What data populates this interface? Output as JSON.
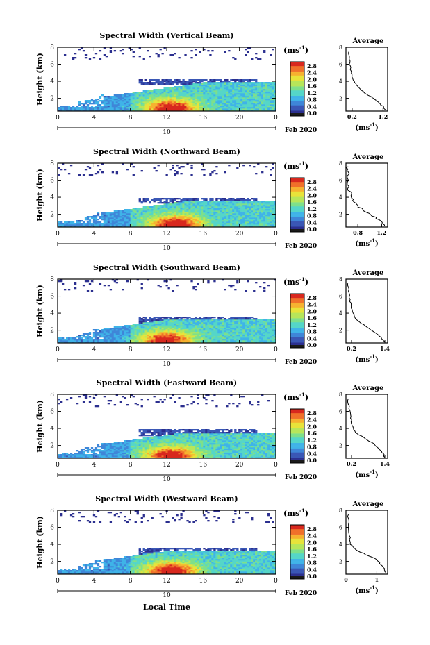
{
  "figure": {
    "xlabel": "Local Time",
    "date_label": "Feb 2020",
    "day_label": "10",
    "colorbar_unit": "(ms",
    "colorbar_unit_exp": "-1",
    "colorbar_unit_close": ")",
    "avg_title": "Average",
    "avg_xlabel": "(ms",
    "avg_xlabel_exp": "-1",
    "avg_xlabel_close": ")",
    "ylabel": "Height (km)",
    "colormap": [
      "#2b2f8f",
      "#3a57b5",
      "#3f86d8",
      "#3fb3e8",
      "#55d6c8",
      "#7ee08a",
      "#b7e65a",
      "#e8e33a",
      "#f6b12f",
      "#f0702a",
      "#d8281e"
    ]
  },
  "chart_data": [
    {
      "type": "heatmap",
      "title": "Spectral Width (Vertical Beam)",
      "x_ticks": [
        "0",
        "4",
        "8",
        "12",
        "16",
        "20",
        "0"
      ],
      "xlim": [
        0,
        24
      ],
      "y_ticks": [
        "2",
        "4",
        "6",
        "8"
      ],
      "ylim": [
        0.5,
        8
      ],
      "colorbar": {
        "ticks": [
          "0.0",
          "0.4",
          "0.8",
          "1.2",
          "1.6",
          "2.0",
          "2.4",
          "2.8"
        ],
        "range": [
          0,
          2.8
        ]
      },
      "average": {
        "title": "Average",
        "x_ticks": [
          "0.2",
          "1.2"
        ],
        "xlim": [
          0,
          1.35
        ],
        "y_ticks": [
          "2",
          "4",
          "6",
          "8"
        ],
        "ylim": [
          0.5,
          8
        ],
        "profile": [
          [
            1.3,
            0.6
          ],
          [
            1.2,
            1.0
          ],
          [
            1.1,
            1.4
          ],
          [
            0.95,
            1.8
          ],
          [
            0.8,
            2.2
          ],
          [
            0.55,
            2.8
          ],
          [
            0.4,
            3.4
          ],
          [
            0.25,
            4.0
          ],
          [
            0.2,
            4.6
          ],
          [
            0.15,
            5.2
          ],
          [
            0.12,
            6.0
          ],
          [
            0.1,
            6.8
          ],
          [
            0.08,
            7.5
          ]
        ]
      },
      "cloud_top": 3.9,
      "convective_peak": 12.5,
      "peak_value": 2.6
    },
    {
      "type": "heatmap",
      "title": "Spectral Width (Northward Beam)",
      "x_ticks": [
        "0",
        "4",
        "8",
        "12",
        "16",
        "20",
        "0"
      ],
      "xlim": [
        0,
        24
      ],
      "y_ticks": [
        "2",
        "4",
        "6",
        "8"
      ],
      "ylim": [
        0.5,
        8
      ],
      "colorbar": {
        "ticks": [
          "0.0",
          "0.4",
          "0.8",
          "1.2",
          "1.6",
          "2.0",
          "2.4",
          "2.8"
        ],
        "range": [
          0,
          2.8
        ]
      },
      "average": {
        "title": "Average",
        "x_ticks": [
          "0.8",
          "1.2"
        ],
        "xlim": [
          0.6,
          1.3
        ],
        "y_ticks": [
          "2",
          "4",
          "6",
          "8"
        ],
        "ylim": [
          0.5,
          8
        ],
        "profile": [
          [
            1.25,
            0.6
          ],
          [
            1.2,
            1.2
          ],
          [
            1.05,
            1.8
          ],
          [
            0.9,
            2.4
          ],
          [
            0.8,
            3.0
          ],
          [
            0.72,
            3.6
          ],
          [
            0.68,
            4.2
          ],
          [
            0.65,
            5.0
          ],
          [
            0.64,
            6.0
          ],
          [
            0.63,
            7.0
          ],
          [
            0.62,
            7.6
          ]
        ]
      },
      "cloud_top": 3.6,
      "convective_peak": 13.0,
      "peak_value": 2.6
    },
    {
      "type": "heatmap",
      "title": "Spectral Width (Southward Beam)",
      "x_ticks": [
        "0",
        "4",
        "8",
        "12",
        "16",
        "20",
        "0"
      ],
      "xlim": [
        0,
        24
      ],
      "y_ticks": [
        "2",
        "4",
        "6",
        "8"
      ],
      "ylim": [
        0.5,
        8
      ],
      "colorbar": {
        "ticks": [
          "0.0",
          "0.4",
          "0.8",
          "1.2",
          "1.6",
          "2.0",
          "2.4",
          "2.8"
        ],
        "range": [
          0,
          2.8
        ]
      },
      "average": {
        "title": "Average",
        "x_ticks": [
          "0.2",
          "1.4"
        ],
        "xlim": [
          0,
          1.5
        ],
        "y_ticks": [
          "2",
          "4",
          "6",
          "8"
        ],
        "ylim": [
          0.5,
          8
        ],
        "profile": [
          [
            1.4,
            0.6
          ],
          [
            1.3,
            1.0
          ],
          [
            1.1,
            1.6
          ],
          [
            0.85,
            2.2
          ],
          [
            0.55,
            2.8
          ],
          [
            0.35,
            3.4
          ],
          [
            0.25,
            4.0
          ],
          [
            0.18,
            4.8
          ],
          [
            0.14,
            5.6
          ],
          [
            0.1,
            6.6
          ],
          [
            0.08,
            7.5
          ]
        ]
      },
      "cloud_top": 3.2,
      "convective_peak": 12.0,
      "peak_value": 2.4
    },
    {
      "type": "heatmap",
      "title": "Spectral Width (Eastward Beam)",
      "x_ticks": [
        "0",
        "4",
        "8",
        "12",
        "16",
        "20",
        "0"
      ],
      "xlim": [
        0,
        24
      ],
      "y_ticks": [
        "2",
        "4",
        "6",
        "8"
      ],
      "ylim": [
        0.5,
        8
      ],
      "colorbar": {
        "ticks": [
          "0.0",
          "0.4",
          "0.8",
          "1.2",
          "1.6",
          "2.0",
          "2.4",
          "2.8"
        ],
        "range": [
          0,
          2.8
        ]
      },
      "average": {
        "title": "Average",
        "x_ticks": [
          "0.2",
          "1.4"
        ],
        "xlim": [
          0,
          1.5
        ],
        "y_ticks": [
          "2",
          "4",
          "6",
          "8"
        ],
        "ylim": [
          0.5,
          8
        ],
        "profile": [
          [
            1.4,
            0.6
          ],
          [
            1.35,
            1.0
          ],
          [
            1.2,
            1.6
          ],
          [
            1.0,
            2.2
          ],
          [
            0.7,
            2.8
          ],
          [
            0.4,
            3.4
          ],
          [
            0.25,
            4.0
          ],
          [
            0.2,
            4.8
          ],
          [
            0.15,
            5.6
          ],
          [
            0.1,
            6.6
          ],
          [
            0.08,
            7.5
          ]
        ]
      },
      "cloud_top": 3.5,
      "convective_peak": 12.5,
      "peak_value": 2.5
    },
    {
      "type": "heatmap",
      "title": "Spectral Width (Westward Beam)",
      "x_ticks": [
        "0",
        "4",
        "8",
        "12",
        "16",
        "20",
        "0"
      ],
      "xlim": [
        0,
        24
      ],
      "y_ticks": [
        "2",
        "4",
        "6",
        "8"
      ],
      "ylim": [
        0.5,
        8
      ],
      "colorbar": {
        "ticks": [
          "0.0",
          "0.4",
          "0.8",
          "1.2",
          "1.6",
          "2.0",
          "2.4",
          "2.8"
        ],
        "range": [
          0,
          2.8
        ]
      },
      "average": {
        "title": "Average",
        "x_ticks": [
          "0",
          "1"
        ],
        "xlim": [
          0,
          1.35
        ],
        "y_ticks": [
          "2",
          "4",
          "6",
          "8"
        ],
        "ylim": [
          0.5,
          8
        ],
        "profile": [
          [
            1.3,
            0.6
          ],
          [
            1.25,
            1.0
          ],
          [
            1.15,
            1.6
          ],
          [
            1.0,
            2.2
          ],
          [
            0.65,
            2.8
          ],
          [
            0.3,
            3.4
          ],
          [
            0.15,
            4.0
          ],
          [
            0.12,
            4.8
          ],
          [
            0.1,
            5.6
          ],
          [
            0.08,
            6.6
          ],
          [
            0.06,
            7.5
          ]
        ]
      },
      "cloud_top": 3.2,
      "convective_peak": 12.5,
      "peak_value": 2.6
    }
  ]
}
